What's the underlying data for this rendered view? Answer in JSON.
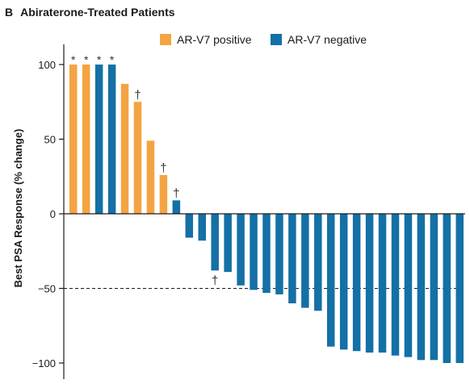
{
  "panel": {
    "letter": "B",
    "title": "Abiraterone-Treated Patients"
  },
  "chart_data": {
    "type": "bar",
    "title": "Abiraterone-Treated Patients",
    "xlabel": "",
    "ylabel": "Best PSA Response (% change)",
    "ylim": [
      -110,
      110
    ],
    "yticks": [
      100,
      50,
      0,
      -50,
      -100
    ],
    "ytick_labels": [
      "100",
      "50",
      "0",
      "−50",
      "−100"
    ],
    "reference_line": {
      "y": -50,
      "style": "dashed"
    },
    "legend": {
      "placement": "top",
      "entries": [
        {
          "label": "AR-V7 positive",
          "color": "#F4A443"
        },
        {
          "label": "AR-V7 negative",
          "color": "#1470A6"
        }
      ]
    },
    "colors": {
      "AR-V7 positive": "#F4A443",
      "AR-V7 negative": "#1470A6"
    },
    "bars": [
      {
        "value": 100,
        "group": "AR-V7 positive",
        "marker": "*"
      },
      {
        "value": 100,
        "group": "AR-V7 positive",
        "marker": "*"
      },
      {
        "value": 100,
        "group": "AR-V7 negative",
        "marker": "*"
      },
      {
        "value": 100,
        "group": "AR-V7 negative",
        "marker": "*"
      },
      {
        "value": 87,
        "group": "AR-V7 positive",
        "marker": ""
      },
      {
        "value": 75,
        "group": "AR-V7 positive",
        "marker": "†"
      },
      {
        "value": 49,
        "group": "AR-V7 positive",
        "marker": ""
      },
      {
        "value": 26,
        "group": "AR-V7 positive",
        "marker": "†"
      },
      {
        "value": 9,
        "group": "AR-V7 negative",
        "marker": "†"
      },
      {
        "value": -16,
        "group": "AR-V7 negative",
        "marker": ""
      },
      {
        "value": -18,
        "group": "AR-V7 negative",
        "marker": ""
      },
      {
        "value": -38,
        "group": "AR-V7 negative",
        "marker": "†"
      },
      {
        "value": -39,
        "group": "AR-V7 negative",
        "marker": ""
      },
      {
        "value": -48,
        "group": "AR-V7 negative",
        "marker": ""
      },
      {
        "value": -51,
        "group": "AR-V7 negative",
        "marker": ""
      },
      {
        "value": -53,
        "group": "AR-V7 negative",
        "marker": ""
      },
      {
        "value": -54,
        "group": "AR-V7 negative",
        "marker": ""
      },
      {
        "value": -60,
        "group": "AR-V7 negative",
        "marker": ""
      },
      {
        "value": -63,
        "group": "AR-V7 negative",
        "marker": ""
      },
      {
        "value": -65,
        "group": "AR-V7 negative",
        "marker": ""
      },
      {
        "value": -89,
        "group": "AR-V7 negative",
        "marker": ""
      },
      {
        "value": -91,
        "group": "AR-V7 negative",
        "marker": ""
      },
      {
        "value": -92,
        "group": "AR-V7 negative",
        "marker": ""
      },
      {
        "value": -93,
        "group": "AR-V7 negative",
        "marker": ""
      },
      {
        "value": -93,
        "group": "AR-V7 negative",
        "marker": ""
      },
      {
        "value": -95,
        "group": "AR-V7 negative",
        "marker": ""
      },
      {
        "value": -96,
        "group": "AR-V7 negative",
        "marker": ""
      },
      {
        "value": -98,
        "group": "AR-V7 negative",
        "marker": ""
      },
      {
        "value": -98,
        "group": "AR-V7 negative",
        "marker": ""
      },
      {
        "value": -100,
        "group": "AR-V7 negative",
        "marker": ""
      },
      {
        "value": -100,
        "group": "AR-V7 negative",
        "marker": ""
      }
    ]
  }
}
